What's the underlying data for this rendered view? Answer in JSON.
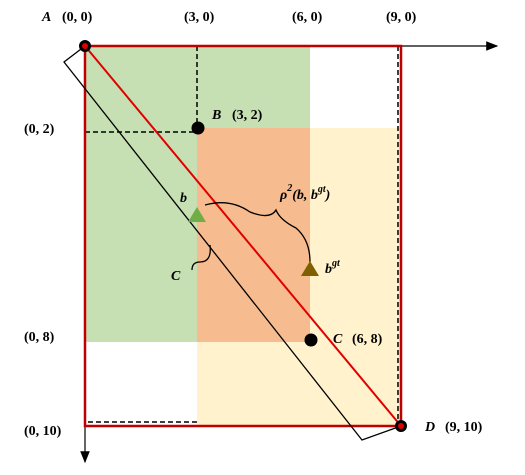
{
  "points": [
    {
      "label": "A",
      "coord": "(0, 0)"
    },
    {
      "label": "B",
      "coord": "(3, 2)"
    },
    {
      "label": "C",
      "coord": "(6, 8)"
    },
    {
      "label": "D",
      "coord": "(9, 10)"
    }
  ],
  "x_axis_labels": [
    "(3, 0)",
    "(6, 0)",
    "(9, 0)"
  ],
  "y_axis_labels": [
    "(0, 2)",
    "(0, 8)",
    "(0, 10)"
  ],
  "box_labels": {
    "predicted": "b",
    "ground_truth_base": "b",
    "ground_truth_sup": "gt"
  },
  "distance_label": {
    "rho": "ρ",
    "power": "2",
    "args": "(b, b",
    "args_sup": "gt",
    "close": ")"
  },
  "enclosing_label": "C"
}
